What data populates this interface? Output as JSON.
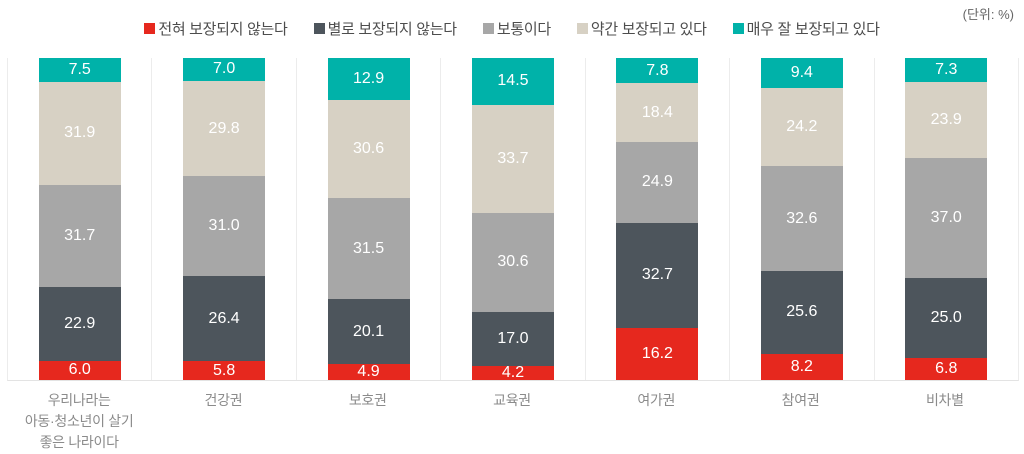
{
  "unit_label": "(단위: %)",
  "chart_data": {
    "type": "bar",
    "stacked": true,
    "orientation": "vertical",
    "unit_label": "(단위: %)",
    "ylim": [
      0,
      100
    ],
    "grid": "vertical-separators-only",
    "legend_position": "top-center",
    "value_label_format": "one-decimal, white, centered in segment",
    "stack_order_bottom_to_top": [
      "전혀 보장되지 않는다",
      "별로 보장되지 않는다",
      "보통이다",
      "약간 보장되고 있다",
      "매우 잘 보장되고 있다"
    ],
    "categories": [
      "우리나라는\n아동·청소년이 살기\n좋은 나라이다",
      "건강권",
      "보호권",
      "교육권",
      "여가권",
      "참여권",
      "비차별"
    ],
    "series": [
      {
        "name": "전혀 보장되지 않는다",
        "color": "#e6281e",
        "values": [
          6.0,
          5.8,
          4.9,
          4.2,
          16.2,
          8.2,
          6.8
        ]
      },
      {
        "name": "별로 보장되지 않는다",
        "color": "#4d555c",
        "values": [
          22.9,
          26.4,
          20.1,
          17.0,
          32.7,
          25.6,
          25.0
        ]
      },
      {
        "name": "보통이다",
        "color": "#a7a7a7",
        "values": [
          31.7,
          31.0,
          31.5,
          30.6,
          24.9,
          32.6,
          37.0
        ]
      },
      {
        "name": "약간 보장되고 있다",
        "color": "#d7d1c4",
        "values": [
          31.9,
          29.8,
          30.6,
          33.7,
          18.4,
          24.2,
          23.9
        ]
      },
      {
        "name": "매우 잘 보장되고 있다",
        "color": "#00b2a9",
        "values": [
          7.5,
          7.0,
          12.9,
          14.5,
          7.8,
          9.4,
          7.3
        ]
      }
    ]
  }
}
